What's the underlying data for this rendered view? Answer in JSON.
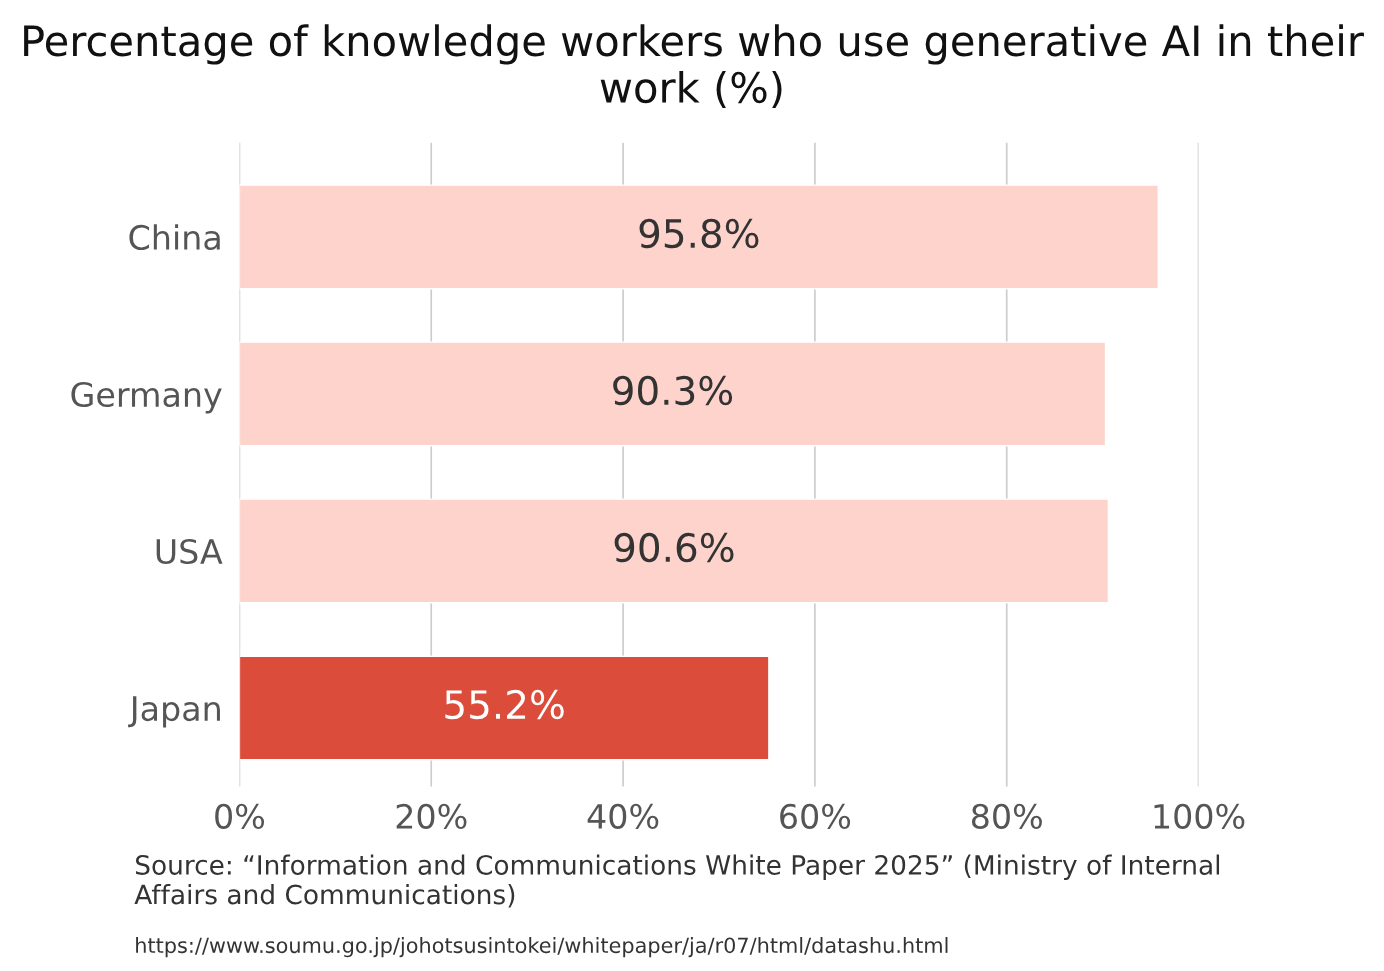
{
  "chart_data": {
    "type": "bar",
    "orientation": "horizontal",
    "title": "Percentage of knowledge workers who use generative AI in their work (%)",
    "categories": [
      "China",
      "Germany",
      "USA",
      "Japan"
    ],
    "values": [
      95.8,
      90.3,
      90.6,
      55.2
    ],
    "colors": [
      "#fdd3cc",
      "#fdd3cc",
      "#fdd3cc",
      "#dc4c3a"
    ],
    "value_labels": [
      "95.8%",
      "90.3%",
      "90.6%",
      "55.2%"
    ],
    "xlim": [
      0,
      100
    ],
    "xticks": [
      {
        "value": 0,
        "label": "0%"
      },
      {
        "value": 20,
        "label": "20%"
      },
      {
        "value": 40,
        "label": "40%"
      },
      {
        "value": 60,
        "label": "60%"
      },
      {
        "value": 80,
        "label": "80%"
      },
      {
        "value": 100,
        "label": "100%"
      }
    ],
    "grid": "x",
    "legend": false,
    "annotations": [
      "Source: “Information and Communications White Paper 2025” (Ministry of Internal Affairs and Communications)",
      "https://www.soumu.go.jp/johotsusintokei/whitepaper/ja/r07/html/datashu.html"
    ]
  }
}
